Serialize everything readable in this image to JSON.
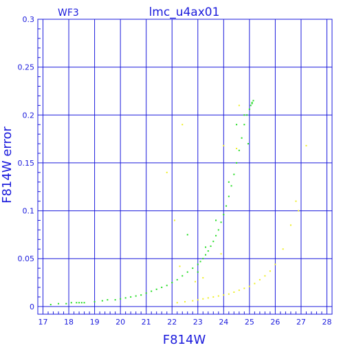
{
  "chart_data": {
    "type": "scatter",
    "title": "lmc_u4ax01",
    "corner_label": "WF3",
    "xlabel": "F814W",
    "ylabel": "F814W error",
    "xlim": [
      16.8,
      28.2
    ],
    "ylim": [
      -0.008,
      0.3
    ],
    "xticks": [
      "17",
      "18",
      "19",
      "20",
      "21",
      "22",
      "23",
      "24",
      "25",
      "26",
      "27",
      "28"
    ],
    "yticks": [
      "0",
      "0.05",
      "0.1",
      "0.15",
      "0.2",
      "0.25",
      "0.3"
    ],
    "grid": true,
    "colors": {
      "axes": "#1a1adc",
      "grid": "#1a1adc",
      "green": "#22dd22",
      "yellow": "#eeee22"
    },
    "series": [
      {
        "color": "green",
        "x": [
          17.3,
          17.6,
          17.9,
          18.1,
          18.3,
          18.4,
          18.5,
          18.6,
          19.0,
          19.3,
          19.5,
          19.8,
          20.0,
          20.2,
          20.4,
          20.6,
          20.8,
          21.0,
          21.2,
          21.4,
          21.6,
          21.8,
          22.0,
          22.2,
          22.4,
          22.6,
          22.8,
          23.0,
          23.1,
          23.2,
          23.3,
          23.4,
          23.5,
          23.6,
          23.7,
          23.8,
          23.9,
          24.0,
          24.1,
          24.2,
          24.3,
          24.4,
          24.5,
          24.6,
          24.7,
          24.8,
          24.9,
          25.0,
          25.05,
          25.1,
          25.15,
          23.0,
          22.6,
          23.3,
          24.5,
          24.2,
          24.8,
          23.7,
          24.95,
          25.1
        ],
        "y": [
          0.002,
          0.003,
          0.003,
          0.004,
          0.004,
          0.004,
          0.004,
          0.004,
          0.005,
          0.006,
          0.007,
          0.007,
          0.008,
          0.009,
          0.01,
          0.011,
          0.012,
          0.014,
          0.016,
          0.018,
          0.02,
          0.022,
          0.025,
          0.028,
          0.032,
          0.036,
          0.04,
          0.044,
          0.047,
          0.05,
          0.054,
          0.058,
          0.063,
          0.068,
          0.074,
          0.08,
          0.088,
          0.096,
          0.105,
          0.115,
          0.126,
          0.138,
          0.15,
          0.163,
          0.176,
          0.19,
          0.2,
          0.206,
          0.21,
          0.213,
          0.215,
          0.036,
          0.075,
          0.062,
          0.19,
          0.13,
          0.2,
          0.09,
          0.17,
          0.212
        ]
      },
      {
        "color": "yellow",
        "x": [
          22.2,
          22.5,
          22.8,
          23.0,
          23.2,
          23.4,
          23.6,
          23.8,
          24.0,
          24.2,
          24.4,
          24.6,
          24.8,
          25.0,
          25.2,
          25.4,
          25.6,
          25.8,
          26.0,
          26.3,
          26.6,
          26.8,
          26.9,
          27.2,
          22.4,
          24.0,
          24.6,
          21.8,
          22.1,
          22.9,
          23.2,
          22.3,
          23.9,
          24.5
        ],
        "y": [
          0.004,
          0.005,
          0.006,
          0.007,
          0.008,
          0.009,
          0.01,
          0.011,
          0.012,
          0.013,
          0.015,
          0.017,
          0.019,
          0.021,
          0.024,
          0.028,
          0.032,
          0.037,
          0.044,
          0.06,
          0.085,
          0.11,
          0.1,
          0.168,
          0.19,
          0.168,
          0.21,
          0.14,
          0.09,
          0.026,
          0.03,
          0.042,
          0.055,
          0.165
        ]
      }
    ]
  }
}
